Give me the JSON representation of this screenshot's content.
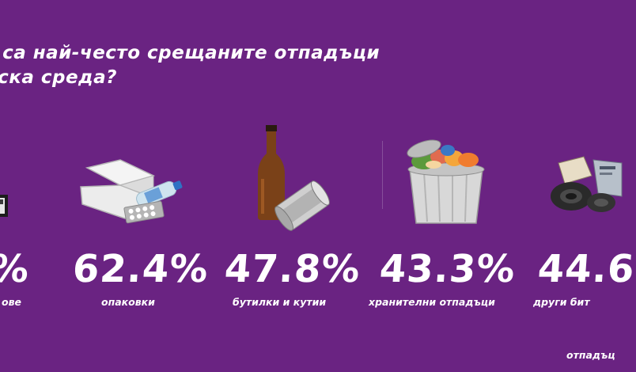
{
  "header": {
    "title": "и са най-често срещаните отпадъци\nдска среда?"
  },
  "stats": [
    {
      "percent": "%",
      "label": "ове",
      "label2": "",
      "icon": "plastic-bag-icon"
    },
    {
      "percent": "62.4%",
      "label": "опаковки",
      "label2": "",
      "icon": "packaging-icon"
    },
    {
      "percent": "47.8%",
      "label": "бутилки и кутии",
      "label2": "",
      "icon": "bottle-and-can-icon"
    },
    {
      "percent": "43.3%",
      "label": "хранителни отпадъци",
      "label2": "",
      "icon": "food-waste-bin-icon"
    },
    {
      "percent": "44.6",
      "label": "други бит",
      "label2": "отпадъц",
      "icon": "mixed-waste-icon"
    }
  ],
  "colors": {
    "background": "#6a2382",
    "text": "#ffffff"
  }
}
